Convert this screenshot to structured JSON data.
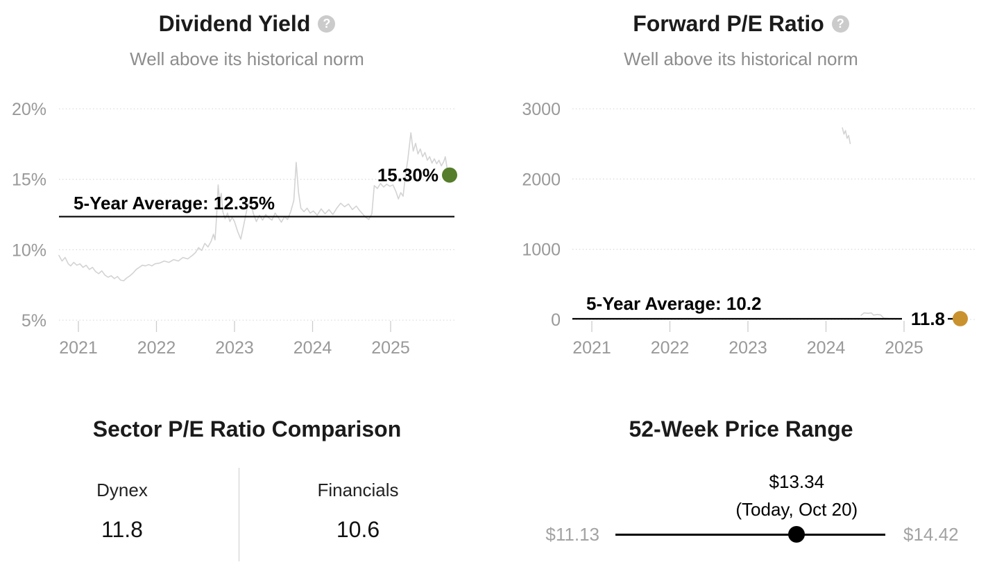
{
  "dividend_yield_panel": {
    "title": "Dividend Yield",
    "help_glyph": "?",
    "subtitle": "Well above its historical norm"
  },
  "forward_pe_panel": {
    "title": "Forward P/E Ratio",
    "help_glyph": "?",
    "subtitle": "Well above its historical norm"
  },
  "sector_comparison": {
    "title": "Sector P/E Ratio Comparison",
    "columns": [
      {
        "label": "Dynex",
        "value": "11.8"
      },
      {
        "label": "Financials",
        "value": "10.6"
      }
    ]
  },
  "price_range": {
    "title": "52-Week Price Range",
    "current_price": "$13.34",
    "current_label": "(Today, Oct 20)",
    "low": "$11.13",
    "high": "$14.42",
    "low_value": 11.13,
    "high_value": 14.42,
    "current_value": 13.34
  },
  "colors": {
    "accent_green": "#567d2b",
    "accent_gold": "#c9922f",
    "series_line": "#d3d3d3",
    "axis_text": "#999999",
    "grid": "#dbdbdb",
    "tick": "#cccccc",
    "avg_line": "#000000",
    "slider": "#000000"
  },
  "chart_data": [
    {
      "type": "line",
      "title": "Dividend Yield",
      "subtitle": "Well above its historical norm",
      "unit": "%",
      "grid": "dotted horizontal",
      "x_range": [
        2020.75,
        2025.75
      ],
      "ylim": [
        5,
        20
      ],
      "y_ticks": [
        {
          "value": 20,
          "label": "20%"
        },
        {
          "value": 15,
          "label": "15%"
        },
        {
          "value": 10,
          "label": "10%"
        },
        {
          "value": 5,
          "label": "5%"
        }
      ],
      "x_ticks": [
        {
          "value": 2021,
          "label": "2021"
        },
        {
          "value": 2022,
          "label": "2022"
        },
        {
          "value": 2023,
          "label": "2023"
        },
        {
          "value": 2024,
          "label": "2024"
        },
        {
          "value": 2025,
          "label": "2025"
        }
      ],
      "average": {
        "value": 12.35,
        "label": "5-Year Average: 12.35%"
      },
      "current": {
        "value": 15.3,
        "label": "15.30%",
        "dot_color": "#567d2b"
      },
      "series": [
        {
          "name": "Dividend Yield",
          "points": [
            [
              2020.75,
              9.6
            ],
            [
              2020.79,
              9.2
            ],
            [
              2020.83,
              9.45
            ],
            [
              2020.87,
              9.0
            ],
            [
              2020.9,
              8.85
            ],
            [
              2020.94,
              9.1
            ],
            [
              2020.98,
              8.9
            ],
            [
              2021.02,
              9.0
            ],
            [
              2021.06,
              8.75
            ],
            [
              2021.1,
              8.9
            ],
            [
              2021.14,
              8.6
            ],
            [
              2021.18,
              8.75
            ],
            [
              2021.22,
              8.45
            ],
            [
              2021.26,
              8.3
            ],
            [
              2021.3,
              8.5
            ],
            [
              2021.34,
              8.2
            ],
            [
              2021.38,
              8.05
            ],
            [
              2021.42,
              8.15
            ],
            [
              2021.46,
              7.95
            ],
            [
              2021.5,
              8.1
            ],
            [
              2021.54,
              7.85
            ],
            [
              2021.58,
              7.8
            ],
            [
              2021.62,
              8.0
            ],
            [
              2021.66,
              8.15
            ],
            [
              2021.7,
              8.35
            ],
            [
              2021.74,
              8.6
            ],
            [
              2021.78,
              8.75
            ],
            [
              2021.82,
              8.9
            ],
            [
              2021.86,
              8.85
            ],
            [
              2021.9,
              8.95
            ],
            [
              2021.94,
              8.85
            ],
            [
              2021.98,
              9.0
            ],
            [
              2022.04,
              9.05
            ],
            [
              2022.1,
              9.2
            ],
            [
              2022.16,
              9.1
            ],
            [
              2022.22,
              9.3
            ],
            [
              2022.28,
              9.2
            ],
            [
              2022.34,
              9.45
            ],
            [
              2022.4,
              9.35
            ],
            [
              2022.46,
              9.6
            ],
            [
              2022.5,
              9.8
            ],
            [
              2022.54,
              10.15
            ],
            [
              2022.58,
              9.95
            ],
            [
              2022.62,
              10.45
            ],
            [
              2022.66,
              10.2
            ],
            [
              2022.7,
              10.6
            ],
            [
              2022.73,
              11.1
            ],
            [
              2022.75,
              10.7
            ],
            [
              2022.77,
              12.3
            ],
            [
              2022.79,
              14.6
            ],
            [
              2022.81,
              13.4
            ],
            [
              2022.83,
              14.0
            ],
            [
              2022.85,
              12.7
            ],
            [
              2022.88,
              12.2
            ],
            [
              2022.91,
              12.6
            ],
            [
              2022.94,
              12.0
            ],
            [
              2022.97,
              12.3
            ],
            [
              2023.0,
              12.0
            ],
            [
              2023.04,
              11.3
            ],
            [
              2023.08,
              10.75
            ],
            [
              2023.12,
              11.8
            ],
            [
              2023.16,
              12.9
            ],
            [
              2023.2,
              13.5
            ],
            [
              2023.24,
              12.6
            ],
            [
              2023.28,
              12.0
            ],
            [
              2023.32,
              12.45
            ],
            [
              2023.36,
              12.1
            ],
            [
              2023.4,
              12.5
            ],
            [
              2023.44,
              12.25
            ],
            [
              2023.48,
              12.1
            ],
            [
              2023.52,
              12.6
            ],
            [
              2023.56,
              12.3
            ],
            [
              2023.6,
              11.95
            ],
            [
              2023.64,
              12.35
            ],
            [
              2023.68,
              12.15
            ],
            [
              2023.72,
              12.7
            ],
            [
              2023.76,
              13.5
            ],
            [
              2023.79,
              16.2
            ],
            [
              2023.82,
              14.1
            ],
            [
              2023.85,
              12.95
            ],
            [
              2023.89,
              12.7
            ],
            [
              2023.93,
              12.95
            ],
            [
              2023.97,
              12.6
            ],
            [
              2024.01,
              12.75
            ],
            [
              2024.06,
              12.45
            ],
            [
              2024.11,
              12.9
            ],
            [
              2024.16,
              12.55
            ],
            [
              2024.21,
              12.85
            ],
            [
              2024.26,
              12.5
            ],
            [
              2024.31,
              12.95
            ],
            [
              2024.36,
              13.3
            ],
            [
              2024.41,
              13.05
            ],
            [
              2024.46,
              13.25
            ],
            [
              2024.51,
              12.85
            ],
            [
              2024.56,
              13.1
            ],
            [
              2024.6,
              12.8
            ],
            [
              2024.64,
              12.55
            ],
            [
              2024.68,
              12.3
            ],
            [
              2024.72,
              12.15
            ],
            [
              2024.76,
              12.55
            ],
            [
              2024.79,
              14.55
            ],
            [
              2024.83,
              14.35
            ],
            [
              2024.87,
              14.7
            ],
            [
              2024.91,
              14.45
            ],
            [
              2024.95,
              14.65
            ],
            [
              2024.99,
              14.5
            ],
            [
              2025.03,
              14.6
            ],
            [
              2025.07,
              14.1
            ],
            [
              2025.1,
              13.6
            ],
            [
              2025.13,
              14.05
            ],
            [
              2025.16,
              13.8
            ],
            [
              2025.19,
              15.3
            ],
            [
              2025.22,
              16.4
            ],
            [
              2025.26,
              18.3
            ],
            [
              2025.29,
              17.0
            ],
            [
              2025.32,
              17.55
            ],
            [
              2025.35,
              16.8
            ],
            [
              2025.38,
              17.15
            ],
            [
              2025.41,
              16.6
            ],
            [
              2025.44,
              16.9
            ],
            [
              2025.47,
              16.35
            ],
            [
              2025.5,
              16.6
            ],
            [
              2025.53,
              16.15
            ],
            [
              2025.56,
              16.45
            ],
            [
              2025.59,
              16.1
            ],
            [
              2025.62,
              16.35
            ],
            [
              2025.65,
              15.95
            ],
            [
              2025.68,
              16.25
            ],
            [
              2025.7,
              16.6
            ],
            [
              2025.72,
              15.9
            ],
            [
              2025.74,
              15.45
            ],
            [
              2025.75,
              15.3
            ]
          ]
        }
      ]
    },
    {
      "type": "line",
      "title": "Forward P/E Ratio",
      "subtitle": "Well above its historical norm",
      "unit": "",
      "grid": "dotted horizontal",
      "x_range": [
        2020.75,
        2025.72
      ],
      "ylim": [
        0,
        3000
      ],
      "y_ticks": [
        {
          "value": 3000,
          "label": "3000"
        },
        {
          "value": 2000,
          "label": "2000"
        },
        {
          "value": 1000,
          "label": "1000"
        },
        {
          "value": 0,
          "label": "0"
        }
      ],
      "x_ticks": [
        {
          "value": 2021,
          "label": "2021"
        },
        {
          "value": 2022,
          "label": "2022"
        },
        {
          "value": 2023,
          "label": "2023"
        },
        {
          "value": 2024,
          "label": "2024"
        },
        {
          "value": 2025,
          "label": "2025"
        }
      ],
      "average": {
        "value": 10.2,
        "label": "5-Year Average: 10.2"
      },
      "current": {
        "value": 11.8,
        "label": "11.8",
        "dot_color": "#c9922f"
      },
      "series": [
        {
          "name": "Forward P/E Ratio",
          "points": [
            [
              2020.75,
              9
            ],
            [
              2021.0,
              9.5
            ],
            [
              2021.25,
              10
            ],
            [
              2021.5,
              9
            ],
            [
              2021.75,
              10
            ],
            [
              2022.0,
              10.5
            ],
            [
              2022.25,
              9.5
            ],
            [
              2022.5,
              10
            ],
            [
              2022.75,
              11
            ],
            [
              2023.0,
              10
            ],
            [
              2023.25,
              9.5
            ],
            [
              2023.5,
              10
            ],
            [
              2023.75,
              10.5
            ],
            [
              2024.0,
              11
            ],
            [
              2024.1,
              13
            ],
            [
              2024.18,
              null
            ],
            [
              2024.21,
              2730
            ],
            [
              2024.23,
              2640
            ],
            [
              2024.25,
              2690
            ],
            [
              2024.27,
              2580
            ],
            [
              2024.29,
              2620
            ],
            [
              2024.31,
              2505
            ],
            [
              2024.33,
              null
            ],
            [
              2024.45,
              60
            ],
            [
              2024.49,
              95
            ],
            [
              2024.54,
              88
            ],
            [
              2024.58,
              95
            ],
            [
              2024.61,
              62
            ],
            [
              2024.66,
              72
            ],
            [
              2024.7,
              65
            ],
            [
              2024.74,
              20
            ],
            [
              2024.8,
              14
            ],
            [
              2024.95,
              12
            ],
            [
              2025.1,
              11
            ],
            [
              2025.3,
              10.5
            ],
            [
              2025.5,
              11.2
            ],
            [
              2025.72,
              11.8
            ]
          ]
        }
      ]
    }
  ]
}
